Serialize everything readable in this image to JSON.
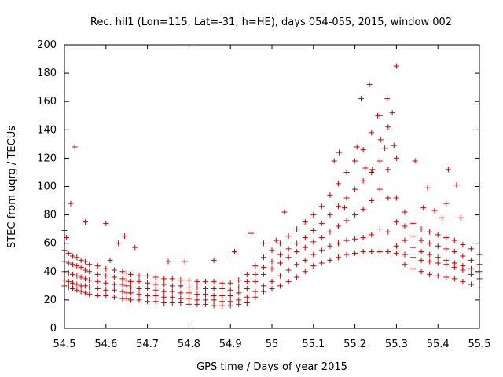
{
  "chart_data": {
    "type": "scatter",
    "title": "Rec. hil1 (Lon=115, Lat=-31, h=HE), days 054-055, 2015, window 002",
    "xlabel": "GPS time / Days of year 2015",
    "ylabel": "STEC from uqrg / TECUs",
    "xlim": [
      54.5,
      55.5
    ],
    "ylim": [
      0,
      200
    ],
    "xticks": [
      54.5,
      54.6,
      54.7,
      54.8,
      54.9,
      55,
      55.1,
      55.2,
      55.3,
      55.4,
      55.5
    ],
    "xtick_labels": [
      "54.5",
      "54.6",
      "54.7",
      "54.8",
      "54.9",
      "55",
      "55.1",
      "55.2",
      "55.3",
      "55.4",
      "55.5"
    ],
    "yticks": [
      0,
      20,
      40,
      60,
      80,
      100,
      120,
      140,
      160,
      180,
      200
    ],
    "ytick_labels": [
      "0",
      "20",
      "40",
      "60",
      "80",
      "100",
      "120",
      "140",
      "160",
      "180",
      "200"
    ],
    "grid": false,
    "legend": "none",
    "marker": "plus",
    "color": "#cc0000",
    "series": [
      {
        "x": [
          54.5,
          54.51,
          54.52,
          54.53,
          54.54,
          54.55,
          54.56,
          54.58,
          54.6,
          54.62,
          54.64,
          54.65,
          54.66,
          54.68,
          54.7,
          54.72,
          54.74,
          54.76,
          54.78,
          54.8,
          54.82,
          54.84,
          54.86,
          54.88,
          54.9,
          54.92,
          54.94,
          54.96,
          54.98,
          55.0,
          55.02,
          55.04,
          55.06,
          55.08,
          55.1,
          55.12,
          55.14,
          55.16,
          55.18,
          55.2,
          55.22,
          55.24,
          55.26,
          55.28,
          55.3,
          55.32,
          55.34,
          55.36,
          55.38,
          55.4,
          55.42,
          55.44,
          55.46,
          55.48,
          55.5
        ],
        "y": [
          30,
          29,
          28,
          27,
          26,
          25,
          24,
          23,
          23,
          22,
          21,
          21,
          20,
          20,
          19,
          19,
          18,
          18,
          18,
          17,
          17,
          17,
          16,
          16,
          16,
          17,
          18,
          22,
          26,
          28,
          30,
          33,
          36,
          40,
          44,
          46,
          48,
          50,
          52,
          53,
          54,
          54,
          54,
          54,
          53,
          45,
          42,
          40,
          38,
          37,
          36,
          35,
          33,
          31,
          29
        ]
      },
      {
        "x": [
          54.5,
          54.51,
          54.52,
          54.53,
          54.54,
          54.55,
          54.56,
          54.58,
          54.6,
          54.62,
          54.64,
          54.65,
          54.66,
          54.68,
          54.7,
          54.72,
          54.74,
          54.76,
          54.78,
          54.8,
          54.82,
          54.84,
          54.86,
          54.88,
          54.9,
          54.92,
          54.94,
          54.96,
          54.98,
          55.0,
          55.02,
          55.04,
          55.06,
          55.08,
          55.1,
          55.12,
          55.14,
          55.16,
          55.18,
          55.2,
          55.22,
          55.24,
          55.26,
          55.28,
          55.3,
          55.32,
          55.34,
          55.36,
          55.38,
          55.4,
          55.42,
          55.44,
          55.46,
          55.48,
          55.5
        ],
        "y": [
          34,
          33,
          32,
          31,
          30,
          30,
          29,
          28,
          27,
          27,
          26,
          25,
          25,
          24,
          23,
          23,
          22,
          22,
          21,
          21,
          20,
          20,
          20,
          19,
          19,
          20,
          22,
          26,
          30,
          33,
          37,
          41,
          45,
          48,
          52,
          55,
          58,
          60,
          62,
          63,
          64,
          66,
          70,
          68,
          58,
          52,
          50,
          48,
          47,
          46,
          45,
          43,
          41,
          38,
          35
        ]
      },
      {
        "x": [
          54.5,
          54.51,
          54.52,
          54.53,
          54.54,
          54.55,
          54.56,
          54.58,
          54.6,
          54.62,
          54.64,
          54.65,
          54.66,
          54.68,
          54.7,
          54.72,
          54.74,
          54.76,
          54.78,
          54.8,
          54.82,
          54.84,
          54.86,
          54.88,
          54.9,
          54.92,
          54.94,
          54.96,
          54.98,
          55.0,
          55.02,
          55.04,
          55.06,
          55.08,
          55.1,
          55.12,
          55.14,
          55.16,
          55.18,
          55.2,
          55.22,
          55.24,
          55.26,
          55.28,
          55.3,
          55.32,
          55.34,
          55.36,
          55.38,
          55.4,
          55.42,
          55.44,
          55.46,
          55.48,
          55.5
        ],
        "y": [
          40,
          39,
          38,
          37,
          36,
          35,
          34,
          33,
          32,
          31,
          31,
          30,
          29,
          28,
          28,
          27,
          26,
          26,
          25,
          25,
          24,
          24,
          23,
          23,
          23,
          25,
          28,
          33,
          38,
          42,
          46,
          50,
          54,
          57,
          61,
          64,
          68,
          72,
          76,
          80,
          84,
          90,
          98,
          92,
          75,
          62,
          57,
          54,
          52,
          50,
          48,
          46,
          44,
          42,
          40
        ]
      },
      {
        "x": [
          54.5,
          54.51,
          54.52,
          54.53,
          54.54,
          54.55,
          54.56,
          54.58,
          54.6,
          54.62,
          54.64,
          54.65,
          54.66,
          54.68,
          54.7,
          54.72,
          54.74,
          54.76,
          54.78,
          54.8,
          54.82,
          54.84,
          54.86,
          54.88,
          54.9,
          54.92,
          54.94,
          54.96,
          54.98,
          55.0,
          55.02,
          55.04,
          55.06,
          55.08,
          55.1,
          55.12,
          55.14,
          55.16,
          55.18,
          55.2,
          55.22,
          55.24,
          55.26,
          55.28,
          55.3,
          55.32,
          55.34,
          55.36,
          55.38,
          55.4,
          55.42,
          55.44,
          55.46,
          55.48,
          55.5
        ],
        "y": [
          47,
          46,
          45,
          44,
          43,
          41,
          40,
          38,
          37,
          36,
          35,
          34,
          33,
          33,
          32,
          31,
          31,
          30,
          30,
          29,
          29,
          28,
          28,
          28,
          27,
          29,
          33,
          38,
          43,
          47,
          52,
          56,
          60,
          64,
          69,
          74,
          80,
          86,
          92,
          98,
          104,
          110,
          118,
          112,
          92,
          72,
          65,
          62,
          60,
          58,
          56,
          54,
          51,
          48,
          45
        ]
      },
      {
        "x": [
          54.5,
          54.51,
          54.52,
          54.53,
          54.54,
          54.55,
          54.56,
          54.58,
          54.6,
          54.62,
          54.64,
          54.65,
          54.66,
          54.68,
          54.7,
          54.72,
          54.74,
          54.76,
          54.78,
          54.8,
          54.82,
          54.84,
          54.86,
          54.88,
          54.9,
          54.92,
          54.94,
          54.96,
          54.98,
          55.0,
          55.02,
          55.04,
          55.06,
          55.08,
          55.1,
          55.12,
          55.14,
          55.16,
          55.18,
          55.2,
          55.22,
          55.24,
          55.26,
          55.28,
          55.3,
          55.32,
          55.34,
          55.36,
          55.38,
          55.4,
          55.42,
          55.44,
          55.46,
          55.48,
          55.5
        ],
        "y": [
          55,
          53,
          51,
          50,
          48,
          47,
          45,
          44,
          42,
          41,
          40,
          39,
          38,
          37,
          37,
          36,
          35,
          35,
          34,
          34,
          33,
          33,
          33,
          32,
          32,
          34,
          38,
          44,
          50,
          55,
          60,
          65,
          70,
          75,
          80,
          86,
          94,
          102,
          110,
          118,
          126,
          138,
          150,
          142,
          120,
          82,
          74,
          70,
          68,
          66,
          64,
          62,
          59,
          56,
          52
        ]
      },
      {
        "x": [
          54.5,
          54.505,
          54.515,
          54.525,
          54.55,
          54.6,
          54.61,
          54.63,
          54.645,
          54.67,
          54.75,
          54.79,
          54.86,
          54.91,
          54.95,
          54.98,
          55.01,
          55.03,
          55.15,
          55.162,
          55.175,
          55.205,
          55.215,
          55.225,
          55.235,
          55.242,
          55.255,
          55.262,
          55.272,
          55.278,
          55.29,
          55.294,
          55.3,
          55.345,
          55.365,
          55.375,
          55.392,
          55.41,
          55.42,
          55.425,
          55.445,
          55.455
        ],
        "y": [
          69,
          64,
          88,
          128,
          75,
          74,
          48,
          60,
          65,
          57,
          47,
          47,
          48,
          54,
          67,
          60,
          62,
          82,
          118,
          124,
          85,
          128,
          162,
          113,
          172,
          112,
          150,
          133,
          127,
          162,
          152,
          129,
          185,
          118,
          85,
          99,
          83,
          78,
          88,
          112,
          101,
          78
        ]
      }
    ]
  }
}
